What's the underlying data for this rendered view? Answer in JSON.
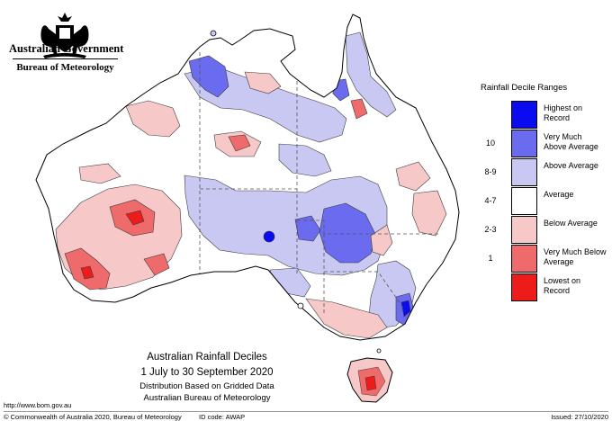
{
  "header": {
    "government": "Australian Government",
    "bureau": "Bureau of Meteorology"
  },
  "legend": {
    "title": "Rainfall Decile Ranges",
    "items": [
      {
        "rank": "",
        "label": "Highest on Record",
        "color": "#0b0bf0"
      },
      {
        "rank": "10",
        "label": "Very Much Above Average",
        "color": "#6b6bf0"
      },
      {
        "rank": "8-9",
        "label": "Above Average",
        "color": "#c8c8f3"
      },
      {
        "rank": "4-7",
        "label": "Average",
        "color": "#ffffff"
      },
      {
        "rank": "2-3",
        "label": "Below Average",
        "color": "#f6c8c8"
      },
      {
        "rank": "1",
        "label": "Very Much Below Average",
        "color": "#ef6b6b"
      },
      {
        "rank": "",
        "label": "Lowest on Record",
        "color": "#ee1b1b"
      }
    ]
  },
  "map_title": {
    "line1": "Australian Rainfall Deciles",
    "line2": "1 July to 30 September 2020",
    "line3": "Distribution Based on Gridded Data",
    "line4": "Australian Bureau of Meteorology"
  },
  "footer": {
    "url": "http://www.bom.gov.au",
    "copyright": "© Commonwealth of Australia 2020, Bureau of Meteorology",
    "id_code": "ID code: AWAP",
    "issued": "Issued: 27/10/2020"
  },
  "colors": {
    "outline": "#000000",
    "border_dash": "#555555",
    "contour": "#3a3a3a"
  }
}
